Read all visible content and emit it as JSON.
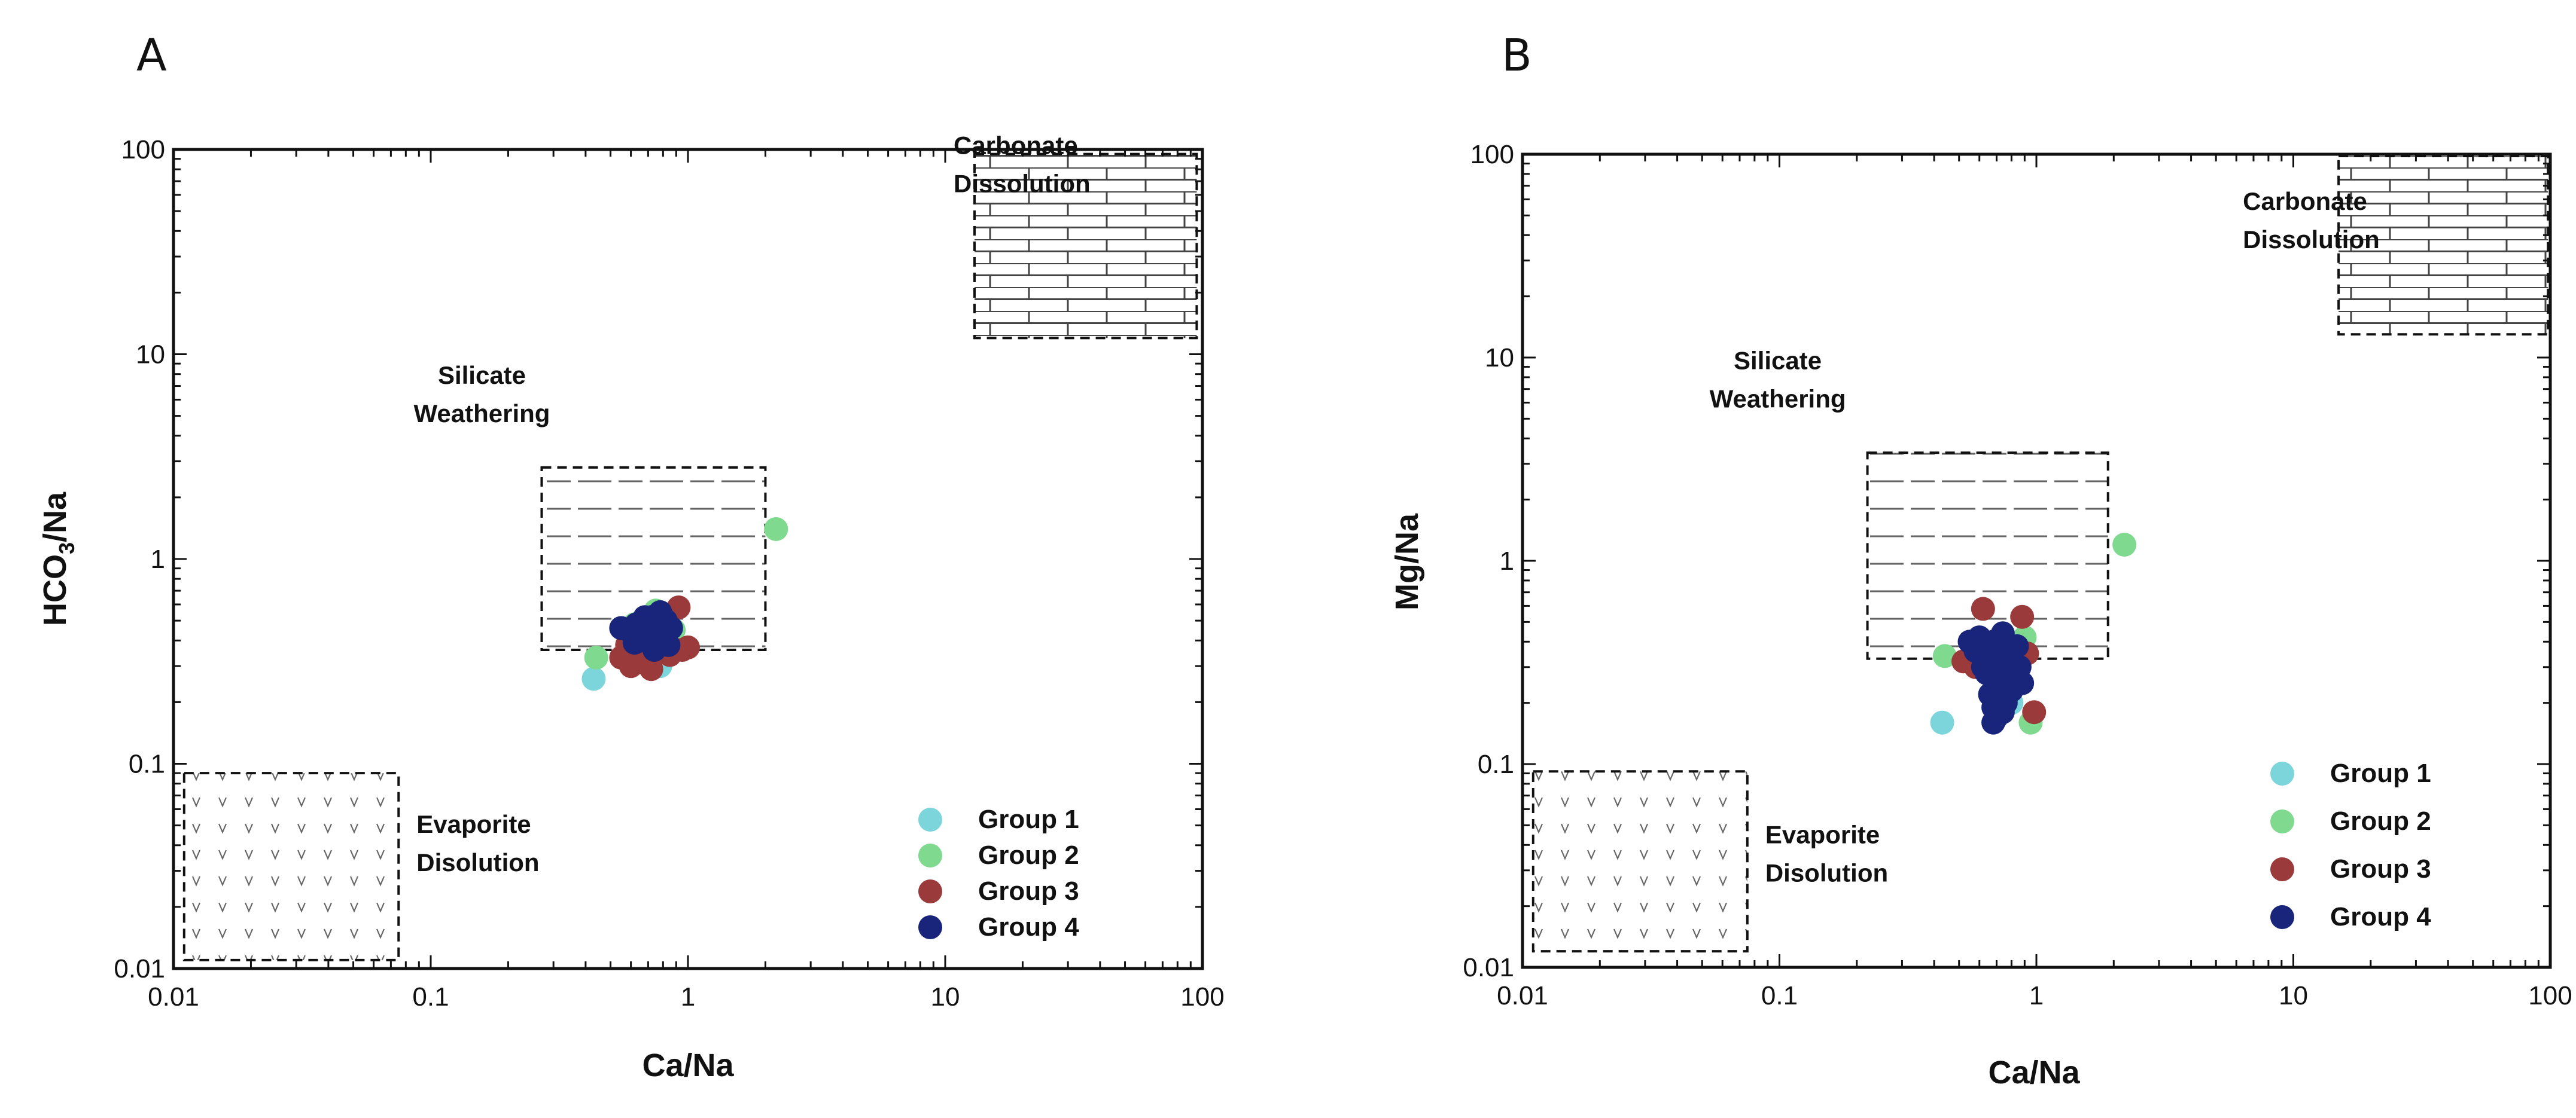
{
  "chart_data": [
    {
      "type": "scatter",
      "panel_label": "A",
      "xlabel": "Ca/Na",
      "ylabel_main": "HCO",
      "ylabel_sub": "3",
      "ylabel_tail": "/Na",
      "xscale": "log",
      "yscale": "log",
      "xlim": [
        0.01,
        100
      ],
      "ylim": [
        0.01,
        100
      ],
      "x_ticks": [
        0.01,
        0.1,
        1,
        10,
        100
      ],
      "x_tick_labels": [
        "0.01",
        "0.1",
        "1",
        "10",
        "100"
      ],
      "y_ticks": [
        0.01,
        0.1,
        1,
        10,
        100
      ],
      "y_tick_labels": [
        "0.01",
        "0.1",
        "1",
        "10",
        "100"
      ],
      "regions": [
        {
          "name": "carbonate",
          "label_lines": [
            "Carbonate",
            "Dissolution"
          ],
          "x": [
            13,
            95
          ],
          "y": [
            12,
            95
          ],
          "pattern": "brick"
        },
        {
          "name": "silicate",
          "label_lines": [
            "Silicate",
            "Weathering"
          ],
          "x": [
            0.27,
            2.0
          ],
          "y": [
            0.36,
            2.8
          ],
          "pattern": "dash"
        },
        {
          "name": "evaporite",
          "label_lines": [
            "Evaporite",
            "Disolution"
          ],
          "x": [
            0.011,
            0.075
          ],
          "y": [
            0.011,
            0.09
          ],
          "pattern": "v"
        }
      ],
      "series": [
        {
          "name": "Group 1",
          "color": "#7dd5dc",
          "x": [
            0.43,
            0.78
          ],
          "y": [
            0.26,
            0.3
          ]
        },
        {
          "name": "Group 2",
          "color": "#7fd98f",
          "x": [
            2.2,
            0.44,
            0.62,
            0.75,
            0.88
          ],
          "y": [
            1.4,
            0.33,
            0.48,
            0.56,
            0.45
          ]
        },
        {
          "name": "Group 3",
          "color": "#9b3a3a",
          "x": [
            0.55,
            0.6,
            0.65,
            0.68,
            0.72,
            0.78,
            0.85,
            0.92,
            1.0,
            0.7,
            0.58,
            0.95
          ],
          "y": [
            0.33,
            0.3,
            0.35,
            0.31,
            0.29,
            0.36,
            0.34,
            0.58,
            0.37,
            0.4,
            0.38,
            0.36
          ]
        },
        {
          "name": "Group 4",
          "color": "#18257a",
          "x": [
            0.55,
            0.6,
            0.63,
            0.66,
            0.68,
            0.7,
            0.72,
            0.74,
            0.76,
            0.78,
            0.8,
            0.82,
            0.84,
            0.86,
            0.65,
            0.7,
            0.75,
            0.8,
            0.72,
            0.68,
            0.62,
            0.78,
            0.74,
            0.66
          ],
          "y": [
            0.46,
            0.44,
            0.48,
            0.42,
            0.5,
            0.46,
            0.52,
            0.44,
            0.48,
            0.55,
            0.42,
            0.5,
            0.38,
            0.46,
            0.4,
            0.43,
            0.4,
            0.47,
            0.45,
            0.52,
            0.39,
            0.43,
            0.36,
            0.47
          ]
        }
      ]
    },
    {
      "type": "scatter",
      "panel_label": "B",
      "xlabel": "Ca/Na",
      "ylabel_main": "Mg/Na",
      "ylabel_sub": "",
      "ylabel_tail": "",
      "xscale": "log",
      "yscale": "log",
      "xlim": [
        0.01,
        100
      ],
      "ylim": [
        0.01,
        100
      ],
      "x_ticks": [
        0.01,
        0.1,
        1,
        10,
        100
      ],
      "x_tick_labels": [
        "0.01",
        "0.1",
        "1",
        "10",
        "100"
      ],
      "y_ticks": [
        0.01,
        0.1,
        1,
        10,
        100
      ],
      "y_tick_labels": [
        "0.01",
        "0.1",
        "1",
        "10",
        "100"
      ],
      "regions": [
        {
          "name": "carbonate",
          "label_lines": [
            "Carbonate",
            "Dissolution"
          ],
          "x": [
            15,
            98
          ],
          "y": [
            13,
            98
          ],
          "pattern": "brick"
        },
        {
          "name": "silicate",
          "label_lines": [
            "Silicate",
            "Weathering"
          ],
          "x": [
            0.22,
            1.9
          ],
          "y": [
            0.33,
            3.4
          ],
          "pattern": "dash"
        },
        {
          "name": "evaporite",
          "label_lines": [
            "Evaporite",
            "Disolution"
          ],
          "x": [
            0.011,
            0.075
          ],
          "y": [
            0.012,
            0.092
          ],
          "pattern": "v"
        }
      ],
      "series": [
        {
          "name": "Group 1",
          "color": "#7dd5dc",
          "x": [
            0.43,
            0.8
          ],
          "y": [
            0.16,
            0.2
          ]
        },
        {
          "name": "Group 2",
          "color": "#7fd98f",
          "x": [
            2.2,
            0.44,
            0.95,
            0.9
          ],
          "y": [
            1.2,
            0.34,
            0.16,
            0.42
          ]
        },
        {
          "name": "Group 3",
          "color": "#9b3a3a",
          "x": [
            0.52,
            0.62,
            0.68,
            0.72,
            0.8,
            0.88,
            0.92,
            0.98,
            0.65,
            0.58
          ],
          "y": [
            0.32,
            0.58,
            0.33,
            0.4,
            0.38,
            0.53,
            0.35,
            0.18,
            0.36,
            0.3
          ]
        },
        {
          "name": "Group 4",
          "color": "#18257a",
          "x": [
            0.55,
            0.58,
            0.6,
            0.62,
            0.64,
            0.66,
            0.68,
            0.7,
            0.72,
            0.74,
            0.76,
            0.78,
            0.8,
            0.82,
            0.84,
            0.86,
            0.88,
            0.66,
            0.7,
            0.74,
            0.68,
            0.72,
            0.76,
            0.64,
            0.7,
            0.78,
            0.66,
            0.72,
            0.8,
            0.7,
            0.68,
            0.74,
            0.62,
            0.76
          ],
          "y": [
            0.4,
            0.36,
            0.42,
            0.3,
            0.38,
            0.34,
            0.4,
            0.36,
            0.32,
            0.44,
            0.28,
            0.3,
            0.34,
            0.26,
            0.38,
            0.3,
            0.25,
            0.22,
            0.2,
            0.18,
            0.16,
            0.24,
            0.22,
            0.28,
            0.27,
            0.36,
            0.31,
            0.29,
            0.23,
            0.17,
            0.19,
            0.25,
            0.33,
            0.2
          ]
        }
      ]
    }
  ]
}
